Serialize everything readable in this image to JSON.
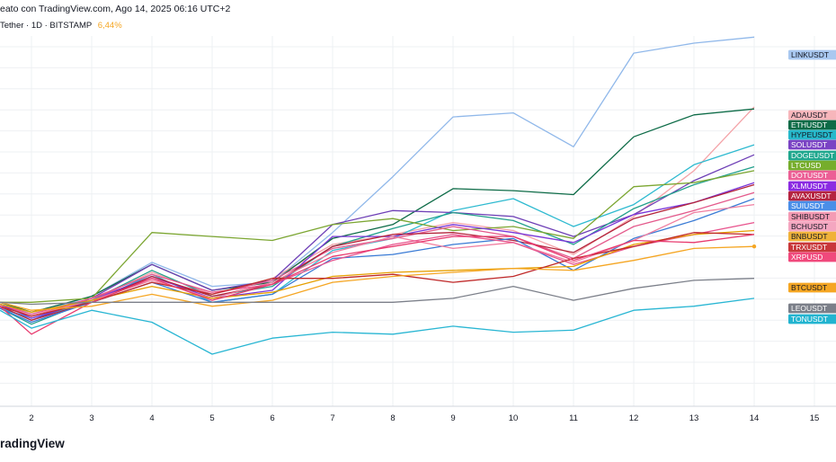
{
  "header": {
    "created_text": "eato con TradingView.com, Ago 14, 2025 06:16 UTC+2",
    "symbol_text": "Tether · 1D · BITSTAMP",
    "change_text": "6,44%",
    "change_color": "#f5a623"
  },
  "footer": {
    "brand": "radingView"
  },
  "chart_data": {
    "type": "line",
    "x": [
      1,
      2,
      3,
      4,
      5,
      6,
      7,
      8,
      9,
      10,
      11,
      12,
      13,
      14
    ],
    "x_ticks": [
      "2",
      "3",
      "4",
      "5",
      "6",
      "7",
      "8",
      "9",
      "10",
      "11",
      "12",
      "13",
      "14",
      "15"
    ],
    "xlim": [
      1.5,
      15.3
    ],
    "ylim": [
      -4,
      13
    ],
    "grid": true,
    "legend_position": "right",
    "series": [
      {
        "name": "LINKUSDT",
        "color": "#90b8ea",
        "label_bg": "#a9c8f0",
        "label_fg": "#131722",
        "values": [
          0,
          -0.6,
          0.3,
          2.0,
          0.8,
          1.0,
          3.5,
          6.3,
          9.3,
          9.5,
          7.8,
          12.5,
          13.0,
          13.3
        ]
      },
      {
        "name": "ADAUSDT",
        "color": "#f4a3a8",
        "label_bg": "#f7b6bb",
        "label_fg": "#131722",
        "values": [
          -0.2,
          -0.9,
          0.1,
          1.5,
          0.4,
          1.2,
          2.9,
          3.4,
          4.0,
          3.6,
          2.4,
          4.3,
          6.6,
          9.8
        ]
      },
      {
        "name": "ETHUSDT",
        "color": "#0d6b47",
        "label_bg": "#0d6b47",
        "label_fg": "#ffffff",
        "values": [
          0,
          -0.5,
          0.3,
          1.9,
          0.6,
          1.0,
          3.2,
          3.9,
          5.7,
          5.6,
          5.4,
          8.3,
          9.4,
          9.7
        ]
      },
      {
        "name": "HYPEUSDT",
        "color": "#2ebad0",
        "label_bg": "#26b9cb",
        "label_fg": "#131722",
        "values": [
          -0.3,
          -0.8,
          0.0,
          1.4,
          0.0,
          0.4,
          2.6,
          3.2,
          4.6,
          5.2,
          3.8,
          4.9,
          6.9,
          7.9
        ]
      },
      {
        "name": "SOLUSDT",
        "color": "#6e3fb6",
        "label_bg": "#7a43c4",
        "label_fg": "#ffffff",
        "values": [
          -0.2,
          -0.9,
          0.2,
          1.9,
          0.6,
          1.1,
          3.9,
          4.6,
          4.5,
          4.3,
          3.3,
          4.4,
          6.1,
          7.4
        ]
      },
      {
        "name": "DOGEUSDT",
        "color": "#22a08c",
        "label_bg": "#1fa78e",
        "label_fg": "#ffffff",
        "values": [
          -0.3,
          -1.1,
          0.1,
          1.6,
          0.3,
          0.8,
          2.8,
          3.7,
          4.5,
          4.1,
          2.9,
          4.7,
          5.9,
          6.8
        ]
      },
      {
        "name": "LTCUSD",
        "color": "#7ca632",
        "label_bg": "#76ad2c",
        "label_fg": "#ffffff",
        "values": [
          0,
          0,
          0.2,
          3.5,
          3.3,
          3.1,
          3.9,
          4.2,
          3.6,
          3.8,
          3.2,
          5.8,
          6.0,
          6.6
        ]
      },
      {
        "name": "DOTUSDT",
        "color": "#e45a8c",
        "label_bg": "#ec5f95",
        "label_fg": "#ffffff",
        "values": [
          -0.1,
          -0.7,
          0.2,
          1.2,
          0.4,
          1.1,
          2.7,
          3.2,
          3.8,
          3.3,
          2.2,
          3.8,
          4.6,
          5.5
        ]
      },
      {
        "name": "XLMUSDT",
        "color": "#7a37d8",
        "label_bg": "#8b2be2",
        "label_fg": "#ffffff",
        "values": [
          -0.1,
          -0.8,
          0.1,
          1.3,
          0.2,
          0.6,
          3.3,
          3.3,
          3.9,
          3.5,
          3.0,
          4.4,
          5.0,
          6.0
        ]
      },
      {
        "name": "AVAXUSDT",
        "color": "#b3233a",
        "label_bg": "#b52440",
        "label_fg": "#ffffff",
        "values": [
          -0.2,
          -0.9,
          0.0,
          1.3,
          0.3,
          0.9,
          2.8,
          3.4,
          3.5,
          3.1,
          2.5,
          4.2,
          5.0,
          5.9
        ]
      },
      {
        "name": "SUIUSDT",
        "color": "#3a7bd5",
        "label_bg": "#4a8ee8",
        "label_fg": "#ffffff",
        "values": [
          -0.3,
          -1.0,
          0.0,
          1.0,
          0.0,
          0.4,
          2.2,
          2.4,
          2.9,
          3.2,
          1.6,
          3.2,
          4.1,
          5.2
        ]
      },
      {
        "name": "SHIBUSDT",
        "color": "#f07ea0",
        "label_bg": "#f49bb4",
        "label_fg": "#131722",
        "values": [
          -0.2,
          -0.7,
          0.1,
          1.1,
          0.2,
          1.0,
          2.5,
          3.3,
          2.7,
          3.0,
          2.0,
          3.1,
          4.5,
          4.9
        ]
      },
      {
        "name": "BCHUSDT",
        "color": "#e8538d",
        "label_bg": "#f4a6c0",
        "label_fg": "#131722",
        "values": [
          -0.1,
          -0.6,
          0.2,
          1.4,
          0.5,
          0.9,
          2.1,
          2.9,
          3.4,
          3.0,
          1.9,
          2.8,
          3.4,
          4.0
        ]
      },
      {
        "name": "BNBUSDT",
        "color": "#e69f00",
        "label_bg": "#f0b23a",
        "label_fg": "#131722",
        "values": [
          -0.1,
          -0.5,
          0.1,
          0.8,
          0.2,
          0.5,
          1.3,
          1.5,
          1.6,
          1.7,
          1.8,
          2.9,
          3.4,
          3.6
        ]
      },
      {
        "name": "TRXUSDT",
        "color": "#c02a2a",
        "label_bg": "#c8373a",
        "label_fg": "#ffffff",
        "values": [
          -0.2,
          -0.7,
          0.0,
          1.0,
          0.4,
          1.2,
          1.2,
          1.4,
          1.0,
          1.3,
          2.2,
          2.8,
          3.5,
          3.4
        ]
      },
      {
        "name": "XRPUSD",
        "color": "#e83a6e",
        "label_bg": "#f0497c",
        "label_fg": "#ffffff",
        "values": [
          -0.2,
          -1.6,
          0.0,
          1.2,
          0.1,
          0.9,
          2.3,
          2.8,
          3.3,
          3.3,
          2.1,
          3.1,
          3.0,
          3.4
        ]
      },
      {
        "name": "BTCUSDT",
        "color": "#f5a623",
        "label_bg": "#f5a623",
        "label_fg": "#131722",
        "values": [
          0,
          -0.4,
          -0.2,
          0.4,
          -0.2,
          0.1,
          1.0,
          1.3,
          1.5,
          1.7,
          1.6,
          2.1,
          2.7,
          2.8
        ]
      },
      {
        "name": "LEOUSDT",
        "color": "#7b7f89",
        "label_bg": "#7b7f89",
        "label_fg": "#ffffff",
        "values": [
          0,
          -0.1,
          0,
          0,
          0,
          0,
          0,
          0,
          0.2,
          0.8,
          0.1,
          0.7,
          1.1,
          1.2
        ]
      },
      {
        "name": "TONUSDT",
        "color": "#29b6d3",
        "label_bg": "#22b4d0",
        "label_fg": "#ffffff",
        "values": [
          -0.4,
          -1.3,
          -0.4,
          -1.0,
          -2.6,
          -1.8,
          -1.5,
          -1.6,
          -1.2,
          -1.5,
          -1.4,
          -0.4,
          -0.2,
          0.2
        ]
      }
    ]
  }
}
